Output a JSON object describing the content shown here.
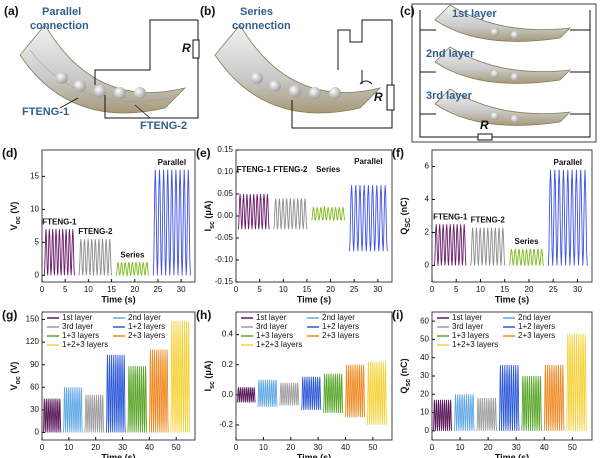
{
  "diagrams": [
    {
      "label": "(a)",
      "title": [
        "Parallel",
        "connection"
      ],
      "resistor": "R",
      "parts": [
        "FTENG-1",
        "FTENG-2"
      ]
    },
    {
      "label": "(b)",
      "title": [
        "Series",
        "connection"
      ],
      "resistor": "R"
    },
    {
      "label": "(c)",
      "layers": [
        "1st layer",
        "2nd layer",
        "3rd layer"
      ],
      "resistor": "R"
    }
  ],
  "chart_data": [
    {
      "type": "line",
      "label": "(d)",
      "ylabel": [
        "V",
        "oc",
        " (V)"
      ],
      "xlabel": "Time (s)",
      "legend": "annotate",
      "xlim": [
        0,
        33
      ],
      "xticks": [
        0,
        5,
        10,
        15,
        20,
        25,
        30
      ],
      "ylim": [
        -1,
        19
      ],
      "yticks": [
        0,
        5,
        10,
        15
      ],
      "series": [
        {
          "name": "FTENG-1",
          "color": "#6a1b6a",
          "x": [
            0.5,
            7
          ],
          "peak": 7,
          "base": 0
        },
        {
          "name": "FTENG-2",
          "color": "#8c8c8c",
          "x": [
            8,
            15
          ],
          "peak": 5.5,
          "base": 0
        },
        {
          "name": "Series",
          "color": "#7dbb1e",
          "x": [
            16,
            23
          ],
          "peak": 2,
          "base": 0
        },
        {
          "name": "Parallel",
          "color": "#3f51e8",
          "x": [
            24,
            32
          ],
          "peak": 16,
          "base": 0
        }
      ]
    },
    {
      "type": "line",
      "label": "(e)",
      "ylabel": [
        "I",
        "sc",
        " (μA)"
      ],
      "xlabel": "Time (s)",
      "legend": "annotate",
      "xlim": [
        0,
        33
      ],
      "xticks": [
        0,
        5,
        10,
        15,
        20,
        25,
        30
      ],
      "ylim": [
        -0.15,
        0.15
      ],
      "yticks": [
        {
          "value": -0.15,
          "label": "-0.15"
        },
        {
          "value": -0.1,
          "label": "-0.10"
        },
        {
          "value": -0.05,
          "label": "-0.05"
        },
        {
          "value": 0,
          "label": "0.00"
        },
        {
          "value": 0.05,
          "label": "0.05"
        },
        {
          "value": 0.1,
          "label": "0.10"
        },
        {
          "value": 0.15,
          "label": "0.15"
        }
      ],
      "series": [
        {
          "name": "FTENG-1",
          "color": "#6a1b6a",
          "x": [
            0.5,
            7
          ],
          "peak": 0.05,
          "base": -0.03
        },
        {
          "name": "FTENG-2",
          "color": "#8c8c8c",
          "x": [
            8,
            15
          ],
          "peak": 0.04,
          "base": -0.03
        },
        {
          "name": "Series",
          "color": "#7dbb1e",
          "x": [
            16,
            23
          ],
          "peak": 0.02,
          "base": -0.01
        },
        {
          "name": "Parallel",
          "color": "#3f51e8",
          "x": [
            24,
            32
          ],
          "peak": 0.07,
          "base": -0.08
        }
      ]
    },
    {
      "type": "line",
      "label": "(f)",
      "ylabel": [
        "Q",
        "SC",
        " (nC)"
      ],
      "xlabel": "Time (s)",
      "legend": "annotate",
      "xlim": [
        0,
        33
      ],
      "xticks": [
        0,
        5,
        10,
        15,
        20,
        25,
        30
      ],
      "ylim": [
        -1,
        7
      ],
      "yticks": [
        0,
        2,
        4,
        6
      ],
      "series": [
        {
          "name": "FTENG-1",
          "color": "#6a1b6a",
          "x": [
            0.5,
            7
          ],
          "peak": 2.5,
          "base": 0
        },
        {
          "name": "FTENG-2",
          "color": "#8c8c8c",
          "x": [
            8,
            15
          ],
          "peak": 2.3,
          "base": 0
        },
        {
          "name": "Series",
          "color": "#7dbb1e",
          "x": [
            16,
            23
          ],
          "peak": 1,
          "base": 0
        },
        {
          "name": "Parallel",
          "color": "#3f51e8",
          "x": [
            24,
            32
          ],
          "peak": 5.8,
          "base": 0
        }
      ]
    },
    {
      "type": "line",
      "label": "(g)",
      "ylabel": [
        "V",
        "oc",
        " (V)"
      ],
      "xlabel": "Time (s)",
      "legend": "upper left",
      "xlim": [
        0,
        57
      ],
      "xticks": [
        0,
        10,
        20,
        30,
        40,
        50
      ],
      "ylim": [
        -10,
        160
      ],
      "yticks": [
        0,
        30,
        60,
        90,
        120,
        150
      ],
      "series": [
        {
          "name": "1st layer",
          "color": "#5b1a5b",
          "x": [
            0.5,
            7
          ],
          "peak": 45,
          "base": 0
        },
        {
          "name": "2nd layer",
          "color": "#5fa8e8",
          "x": [
            8,
            15
          ],
          "peak": 60,
          "base": 0
        },
        {
          "name": "3rd layer",
          "color": "#9e9e9e",
          "x": [
            16,
            23
          ],
          "peak": 50,
          "base": 0
        },
        {
          "name": "1+2 layers",
          "color": "#2e5ad8",
          "x": [
            24,
            31
          ],
          "peak": 103,
          "base": 0
        },
        {
          "name": "1+3 layers",
          "color": "#5aa62a",
          "x": [
            32,
            39
          ],
          "peak": 88,
          "base": 0
        },
        {
          "name": "2+3 layers",
          "color": "#f08a24",
          "x": [
            40,
            47
          ],
          "peak": 110,
          "base": 0
        },
        {
          "name": "1+2+3 layers",
          "color": "#f5d33c",
          "x": [
            48,
            55
          ],
          "peak": 148,
          "base": 0
        }
      ]
    },
    {
      "type": "line",
      "label": "(h)",
      "ylabel": [
        "I",
        "sc",
        " (μA)"
      ],
      "xlabel": "Time (s)",
      "legend": "upper left",
      "xlim": [
        0,
        57
      ],
      "xticks": [
        0,
        10,
        20,
        30,
        40,
        50
      ],
      "ylim": [
        -0.3,
        0.55
      ],
      "yticks": [
        {
          "value": -0.2,
          "label": "-0.2"
        },
        {
          "value": 0,
          "label": "0.0"
        },
        {
          "value": 0.2,
          "label": "0.2"
        },
        {
          "value": 0.4,
          "label": "0.4"
        }
      ],
      "series": [
        {
          "name": "1st layer",
          "color": "#5b1a5b",
          "x": [
            0.5,
            7
          ],
          "peak": 0.05,
          "base": -0.05
        },
        {
          "name": "2nd layer",
          "color": "#5fa8e8",
          "x": [
            8,
            15
          ],
          "peak": 0.1,
          "base": -0.08
        },
        {
          "name": "3rd layer",
          "color": "#9e9e9e",
          "x": [
            16,
            23
          ],
          "peak": 0.08,
          "base": -0.07
        },
        {
          "name": "1+2 layers",
          "color": "#2e5ad8",
          "x": [
            24,
            31
          ],
          "peak": 0.12,
          "base": -0.1
        },
        {
          "name": "1+3 layers",
          "color": "#5aa62a",
          "x": [
            32,
            39
          ],
          "peak": 0.14,
          "base": -0.12
        },
        {
          "name": "2+3 layers",
          "color": "#f08a24",
          "x": [
            40,
            47
          ],
          "peak": 0.2,
          "base": -0.15
        },
        {
          "name": "1+2+3 layers",
          "color": "#f5d33c",
          "x": [
            48,
            55
          ],
          "peak": 0.22,
          "base": -0.2
        }
      ]
    },
    {
      "type": "line",
      "label": "(i)",
      "ylabel": [
        "Q",
        "sc",
        " (nC)"
      ],
      "xlabel": "Time (s)",
      "legend": "upper left",
      "xlim": [
        0,
        57
      ],
      "xticks": [
        0,
        10,
        20,
        30,
        40,
        50
      ],
      "ylim": [
        -5,
        65
      ],
      "yticks": [
        0,
        10,
        20,
        30,
        40,
        50,
        60
      ],
      "series": [
        {
          "name": "1st layer",
          "color": "#5b1a5b",
          "x": [
            0.5,
            7
          ],
          "peak": 17,
          "base": 0
        },
        {
          "name": "2nd layer",
          "color": "#5fa8e8",
          "x": [
            8,
            15
          ],
          "peak": 20,
          "base": 0
        },
        {
          "name": "3rd layer",
          "color": "#9e9e9e",
          "x": [
            16,
            23
          ],
          "peak": 18,
          "base": 0
        },
        {
          "name": "1+2 layers",
          "color": "#2e5ad8",
          "x": [
            24,
            31
          ],
          "peak": 36,
          "base": 0
        },
        {
          "name": "1+3 layers",
          "color": "#5aa62a",
          "x": [
            32,
            39
          ],
          "peak": 30,
          "base": 0
        },
        {
          "name": "2+3 layers",
          "color": "#f08a24",
          "x": [
            40,
            47
          ],
          "peak": 36,
          "base": 0
        },
        {
          "name": "1+2+3 layers",
          "color": "#f5d33c",
          "x": [
            48,
            55
          ],
          "peak": 53,
          "base": 0
        }
      ]
    }
  ]
}
